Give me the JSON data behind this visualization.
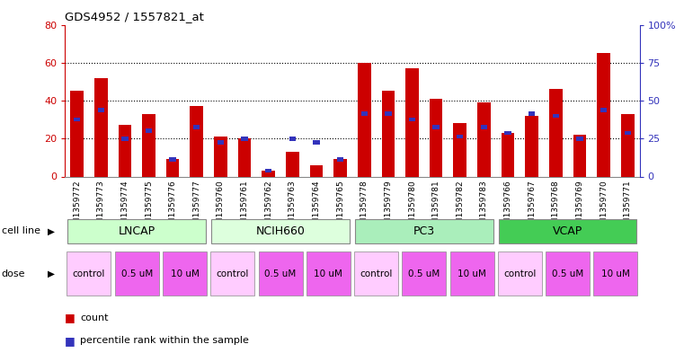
{
  "title": "GDS4952 / 1557821_at",
  "samples": [
    "GSM1359772",
    "GSM1359773",
    "GSM1359774",
    "GSM1359775",
    "GSM1359776",
    "GSM1359777",
    "GSM1359760",
    "GSM1359761",
    "GSM1359762",
    "GSM1359763",
    "GSM1359764",
    "GSM1359765",
    "GSM1359778",
    "GSM1359779",
    "GSM1359780",
    "GSM1359781",
    "GSM1359782",
    "GSM1359783",
    "GSM1359766",
    "GSM1359767",
    "GSM1359768",
    "GSM1359769",
    "GSM1359770",
    "GSM1359771"
  ],
  "red_values": [
    45,
    52,
    27,
    33,
    9,
    37,
    21,
    20,
    3,
    13,
    6,
    9,
    60,
    45,
    57,
    41,
    28,
    39,
    23,
    32,
    46,
    22,
    65,
    33
  ],
  "blue_values": [
    30,
    35,
    20,
    24,
    9,
    26,
    18,
    20,
    3,
    20,
    18,
    9,
    33,
    33,
    30,
    26,
    21,
    26,
    23,
    33,
    32,
    20,
    35,
    23
  ],
  "ylim_left": [
    0,
    80
  ],
  "ylim_right": [
    0,
    100
  ],
  "yticks_left": [
    0,
    20,
    40,
    60,
    80
  ],
  "yticks_right": [
    0,
    25,
    50,
    75,
    100
  ],
  "red_color": "#cc0000",
  "blue_color": "#3333bb",
  "plot_bg": "#ffffff",
  "xtick_bg": "#d0d0d0",
  "cell_line_items": [
    {
      "label": "LNCAP",
      "start": 0,
      "end": 6,
      "color": "#ccffcc"
    },
    {
      "label": "NCIH660",
      "start": 6,
      "end": 12,
      "color": "#ddffdd"
    },
    {
      "label": "PC3",
      "start": 12,
      "end": 18,
      "color": "#aaeebb"
    },
    {
      "label": "VCAP",
      "start": 18,
      "end": 24,
      "color": "#44cc55"
    }
  ],
  "dose_items": [
    {
      "label": "control",
      "start": 0,
      "end": 2,
      "color": "#ffccff"
    },
    {
      "label": "0.5 uM",
      "start": 2,
      "end": 4,
      "color": "#ee66ee"
    },
    {
      "label": "10 uM",
      "start": 4,
      "end": 6,
      "color": "#ee66ee"
    },
    {
      "label": "control",
      "start": 6,
      "end": 8,
      "color": "#ffccff"
    },
    {
      "label": "0.5 uM",
      "start": 8,
      "end": 10,
      "color": "#ee66ee"
    },
    {
      "label": "10 uM",
      "start": 10,
      "end": 12,
      "color": "#ee66ee"
    },
    {
      "label": "control",
      "start": 12,
      "end": 14,
      "color": "#ffccff"
    },
    {
      "label": "0.5 uM",
      "start": 14,
      "end": 16,
      "color": "#ee66ee"
    },
    {
      "label": "10 uM",
      "start": 16,
      "end": 18,
      "color": "#ee66ee"
    },
    {
      "label": "control",
      "start": 18,
      "end": 20,
      "color": "#ffccff"
    },
    {
      "label": "0.5 uM",
      "start": 20,
      "end": 22,
      "color": "#ee66ee"
    },
    {
      "label": "10 uM",
      "start": 22,
      "end": 24,
      "color": "#ee66ee"
    }
  ],
  "legend_count": "count",
  "legend_pct": "percentile rank within the sample",
  "cell_line_label": "cell line",
  "dose_label": "dose"
}
